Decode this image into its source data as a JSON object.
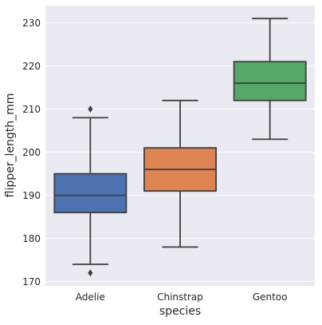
{
  "chart_data": {
    "type": "box",
    "xlabel": "species",
    "ylabel": "flipper_length_mm",
    "categories": [
      "Adelie",
      "Chinstrap",
      "Gentoo"
    ],
    "ylim": [
      169,
      234
    ],
    "yticks": [
      170,
      180,
      190,
      200,
      210,
      220,
      230
    ],
    "grid": true,
    "background_color": "#EAEAF2",
    "grid_color": "#FFFFFF",
    "boxes": [
      {
        "category": "Adelie",
        "whisker_low": 174,
        "q1": 186,
        "median": 190,
        "q3": 195,
        "whisker_high": 208,
        "outliers": [
          172,
          210
        ],
        "color": "#4C72B0"
      },
      {
        "category": "Chinstrap",
        "whisker_low": 178,
        "q1": 191,
        "median": 196,
        "q3": 201,
        "whisker_high": 212,
        "outliers": [],
        "color": "#DD8452"
      },
      {
        "category": "Gentoo",
        "whisker_low": 203,
        "q1": 212,
        "median": 216,
        "q3": 221,
        "whisker_high": 231,
        "outliers": [],
        "color": "#55A868"
      }
    ]
  }
}
